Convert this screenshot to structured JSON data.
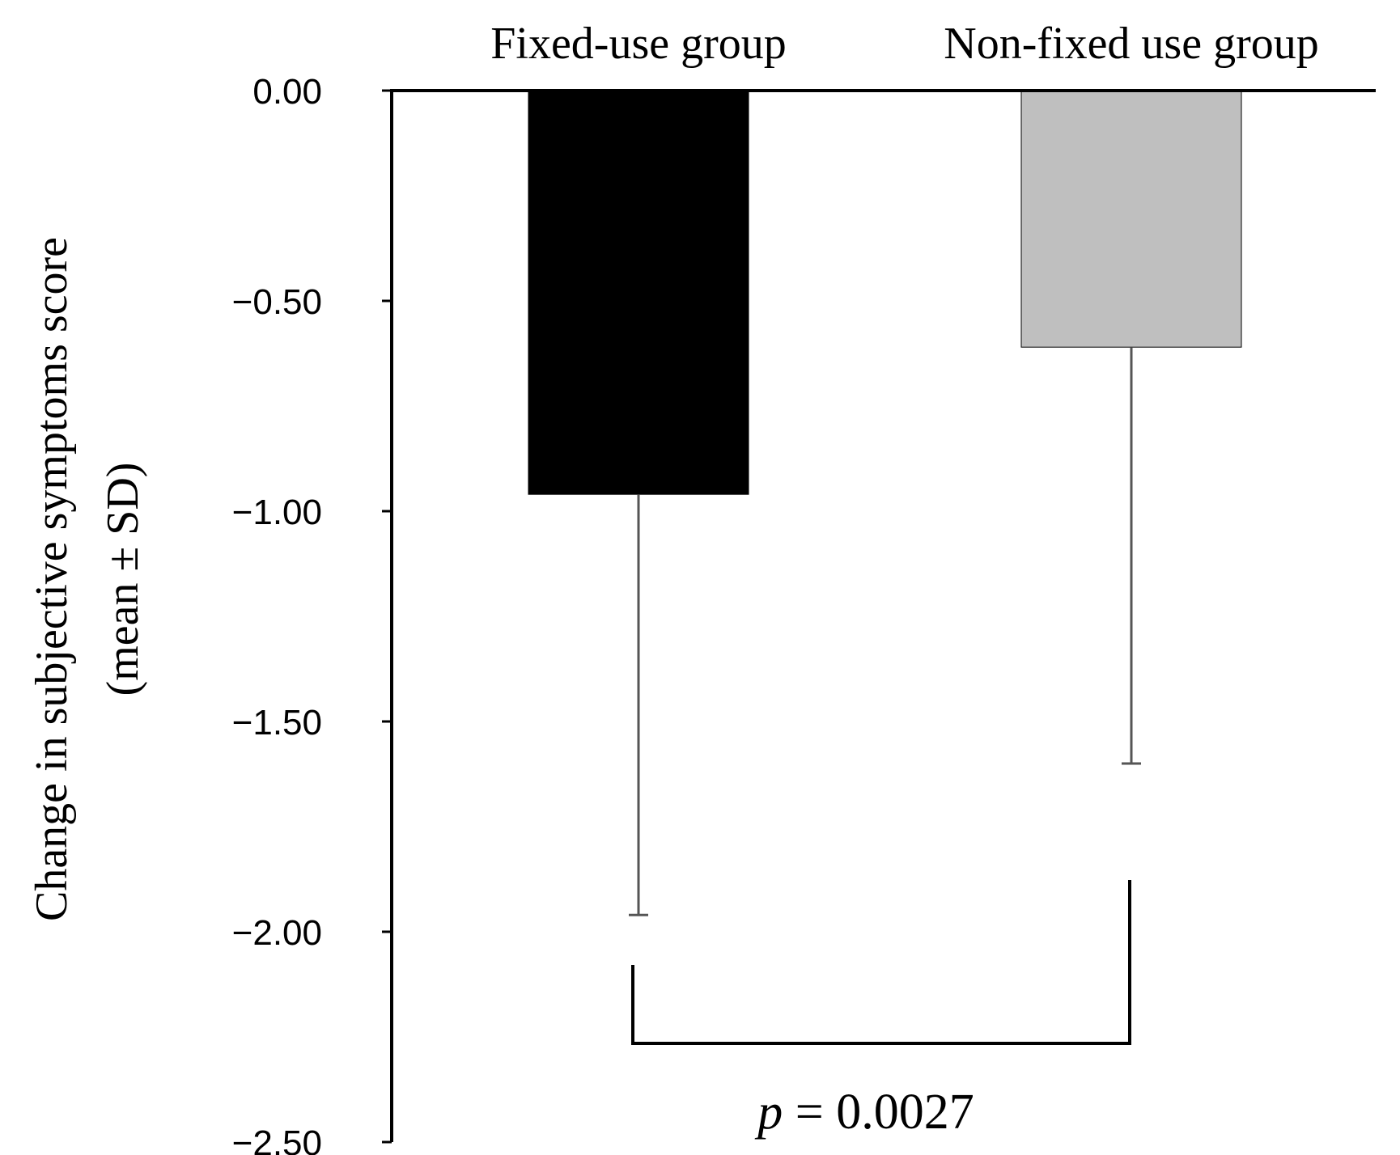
{
  "chart_data": {
    "type": "bar",
    "categories": [
      "Fixed-use group",
      "Non-fixed use group"
    ],
    "values": [
      -0.96,
      -0.61
    ],
    "error_sd": [
      1.0,
      0.99
    ],
    "colors": [
      "#000000",
      "#bfbfbf"
    ],
    "error_bar_color": "#555555",
    "ylabel_line1": "Change in subjective symptoms score",
    "ylabel_line2": "(mean ± SD)",
    "ylim": [
      -2.5,
      0
    ],
    "yticks": [
      0,
      -0.5,
      -1.0,
      -1.5,
      -2.0,
      -2.5
    ],
    "ytick_labels": [
      "0.00",
      "−0.50",
      "−1.00",
      "−1.50",
      "−2.00",
      "−2.50"
    ],
    "category_labels_position": "top",
    "grid": false,
    "annotation": {
      "p_symbol": "p",
      "p_rest": " = 0.0027"
    }
  }
}
